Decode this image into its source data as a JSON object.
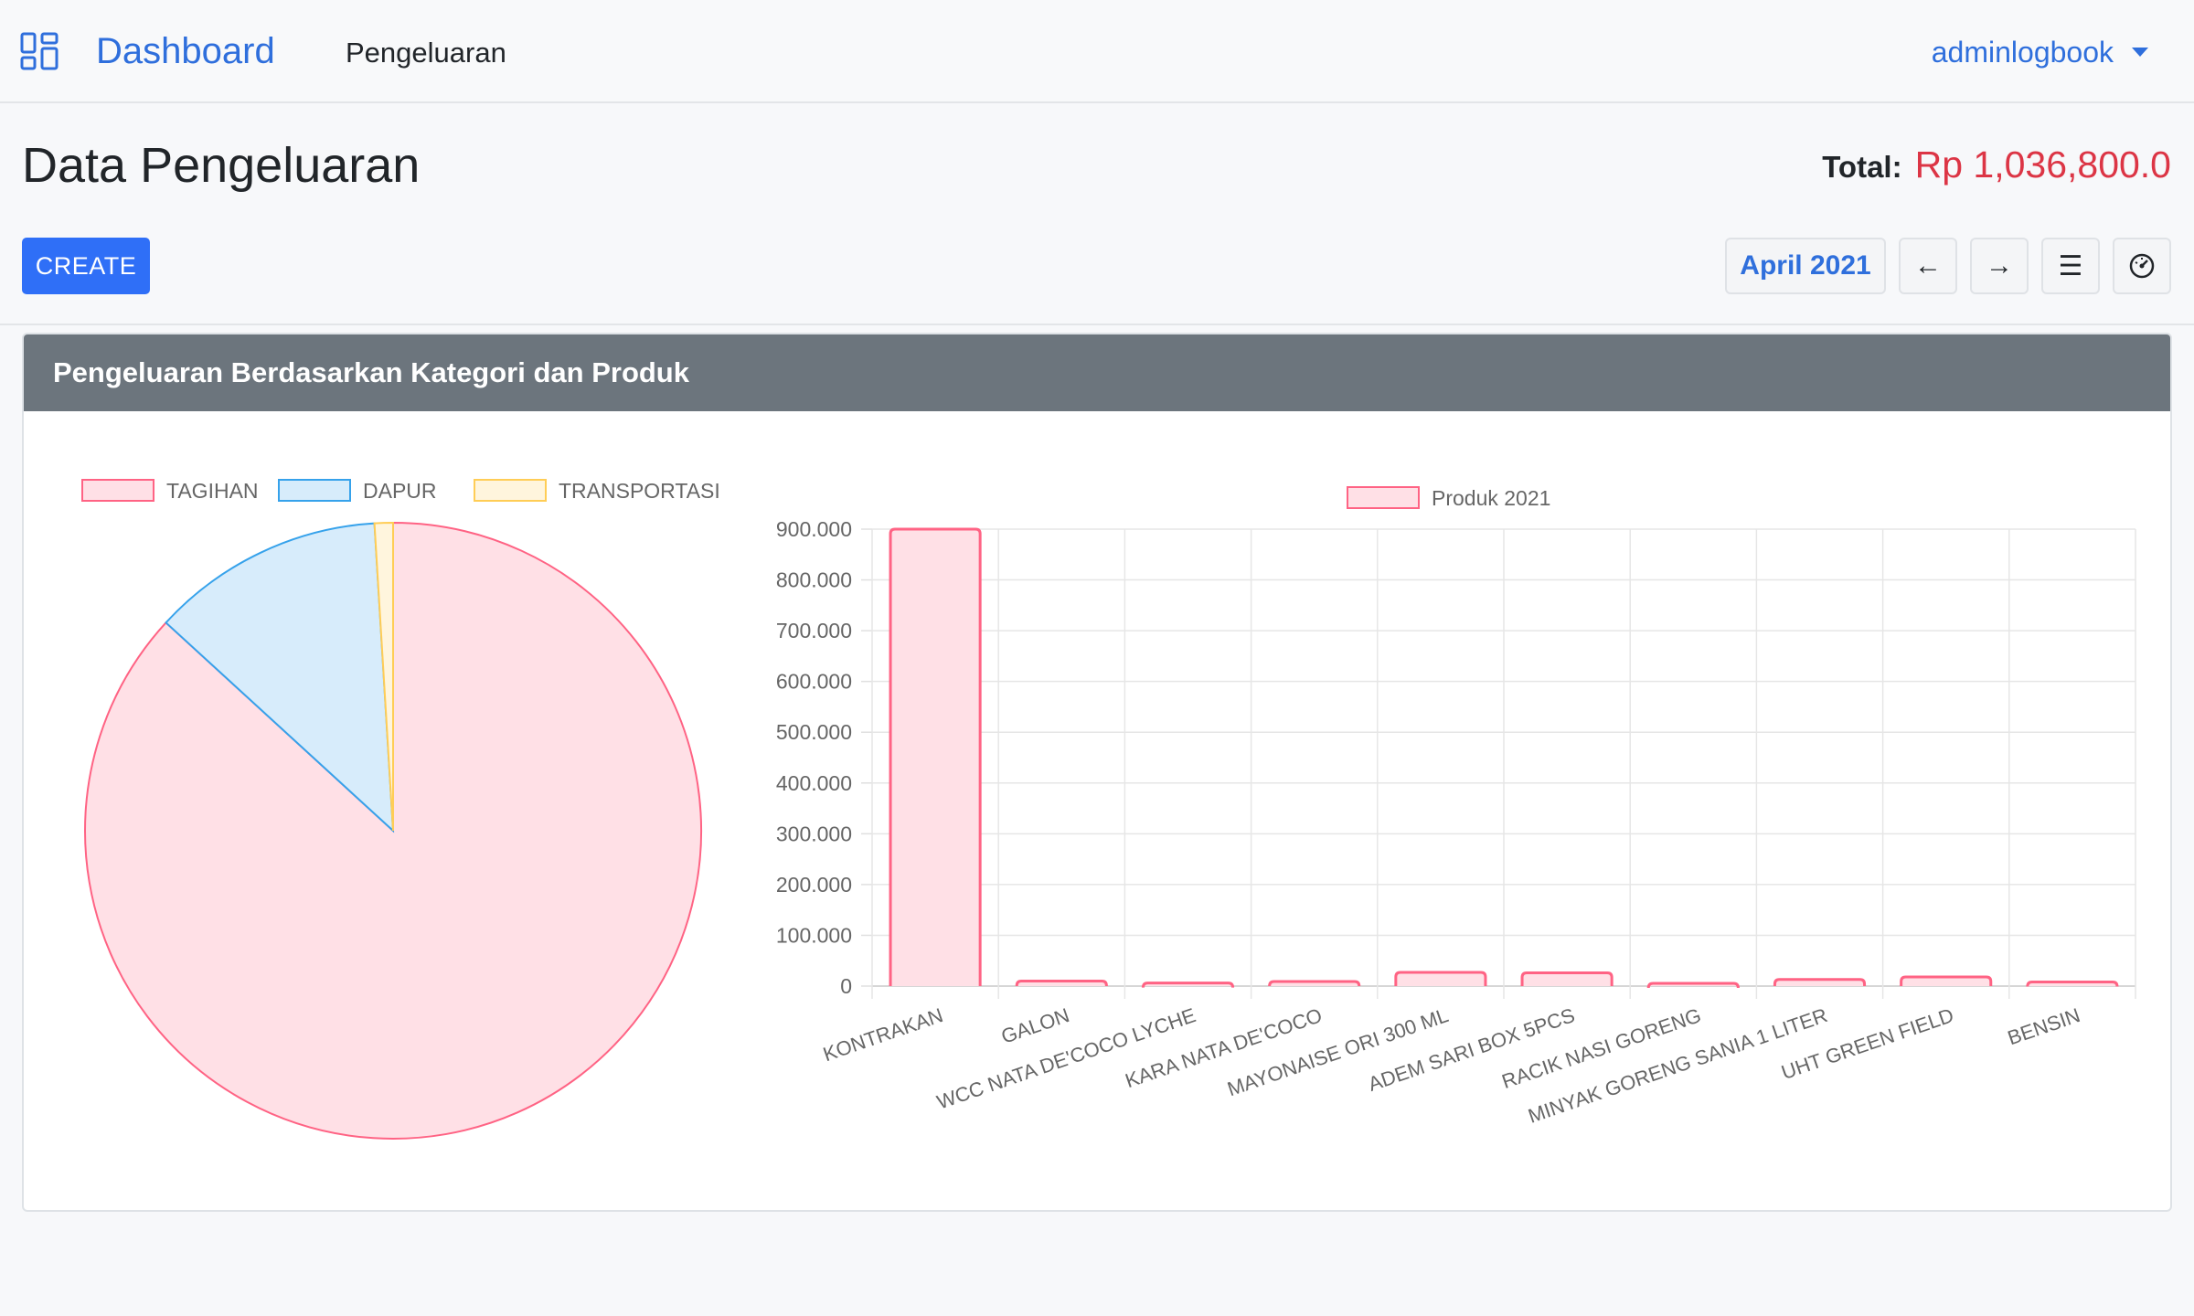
{
  "navbar": {
    "brand": "Dashboard",
    "brand_icon": "grid-icon",
    "nav_link": "Pengeluaran",
    "user": "adminlogbook"
  },
  "header": {
    "title": "Data Pengeluaran",
    "total_label": "Total:",
    "total_value": "Rp 1,036,800.0",
    "create_label": "CREATE",
    "month_label": "April 2021",
    "prev_icon": "←",
    "next_icon": "→",
    "list_icon": "☰",
    "dashboard_icon": "◔"
  },
  "card": {
    "title": "Pengeluaran Berdasarkan Kategori dan Produk"
  },
  "colors": {
    "accent": "#2f6fdc",
    "danger": "#dc3545",
    "pink_fill": "#ffe0e6",
    "pink_stroke": "#ff6384",
    "blue_fill": "#d7ecfb",
    "blue_stroke": "#36a2eb",
    "yellow_fill": "#fff5dd",
    "yellow_stroke": "#ffcd56"
  },
  "chart_data": [
    {
      "type": "pie",
      "labels": [
        "TAGIHAN",
        "DAPUR",
        "TRANSPORTASI"
      ],
      "values": [
        900000,
        126800,
        10000
      ],
      "legend": "top"
    },
    {
      "type": "bar",
      "series_name": "Produk 2021",
      "categories": [
        "KONTRAKAN",
        "GALON",
        "WCC NATA DE'COCO LYCHE",
        "KARA NATA DE'COCO",
        "MAYONAISE ORI 300 ML",
        "ADEM SARI BOX 5PCS",
        "RACIK NASI GORENG",
        "MINYAK GORENG SANIA 1 LITER",
        "UHT GREEN FIELD",
        "BENSIN"
      ],
      "values": [
        900000,
        10000,
        6000,
        9000,
        27000,
        26000,
        3500,
        13000,
        18000,
        8000
      ],
      "ylim": [
        0,
        900000
      ],
      "yticks": [
        "0",
        "100.000",
        "200.000",
        "300.000",
        "400.000",
        "500.000",
        "600.000",
        "700.000",
        "800.000",
        "900.000"
      ],
      "grid": true,
      "legend": "top"
    }
  ]
}
